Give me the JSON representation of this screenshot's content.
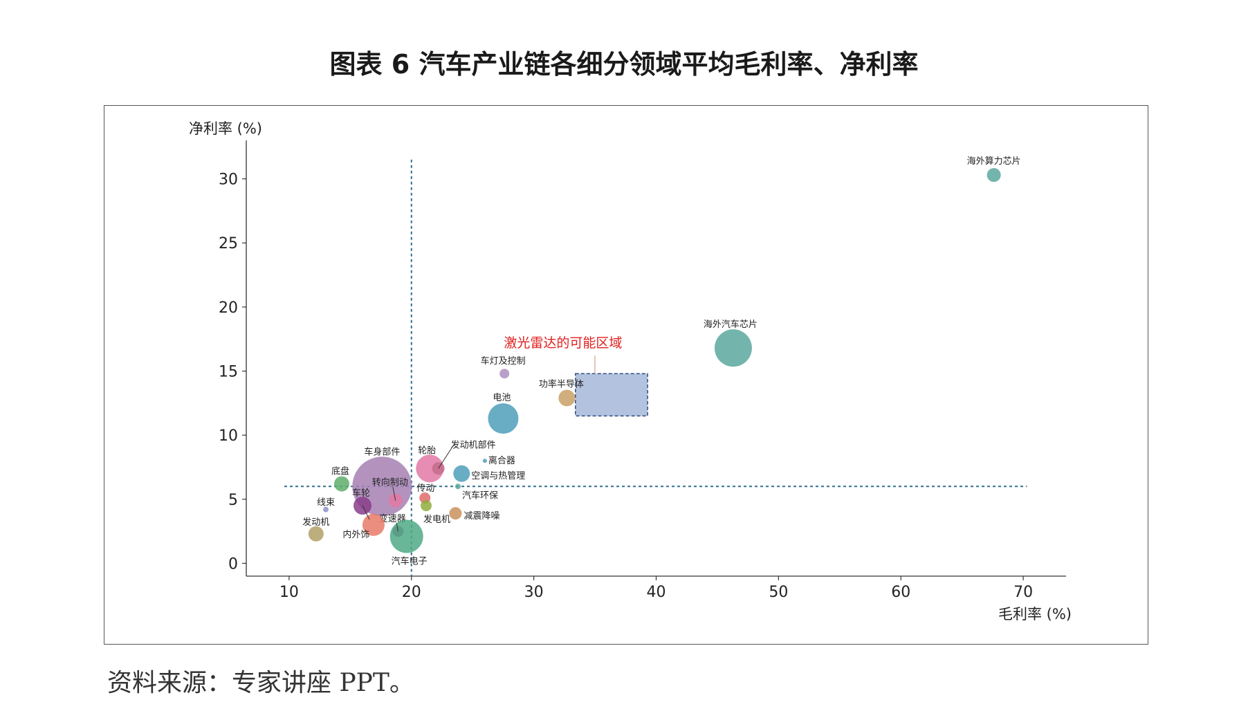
{
  "title": "图表 6  汽车产业链各细分领域平均毛利率、净利率",
  "source": "资料来源：专家讲座 PPT。",
  "chart_data": {
    "type": "scatter",
    "xlabel": "毛利率 (%)",
    "ylabel": "净利率 (%)",
    "xlim": [
      6.5,
      73.5
    ],
    "ylim": [
      -1,
      33
    ],
    "xticks": [
      10,
      20,
      30,
      40,
      50,
      60,
      70
    ],
    "yticks": [
      0,
      5,
      10,
      15,
      20,
      25,
      30
    ],
    "reference_lines": {
      "x": 20,
      "y": 6
    },
    "region": {
      "label": "激光雷达的可能区域",
      "label_color": "#e0201f",
      "x": [
        33.4,
        39.3
      ],
      "y": [
        11.5,
        14.8
      ],
      "fill": "#b3c3df"
    },
    "points": [
      {
        "name": "海外算力芯片",
        "x": 67.6,
        "y": 30.3,
        "size": 10,
        "color": "#5ba89d"
      },
      {
        "name": "海外汽车芯片",
        "x": 46.3,
        "y": 16.8,
        "size": 27,
        "color": "#5ba89d"
      },
      {
        "name": "车灯及控制",
        "x": 27.6,
        "y": 14.8,
        "size": 7,
        "color": "#ab8fc2"
      },
      {
        "name": "功率半导体",
        "x": 32.7,
        "y": 12.9,
        "size": 12,
        "color": "#c9a066"
      },
      {
        "name": "电池",
        "x": 27.5,
        "y": 11.3,
        "size": 22,
        "color": "#4f9fba"
      },
      {
        "name": "车身部件",
        "x": 17.6,
        "y": 6.0,
        "size": 43,
        "color": "#a680b3"
      },
      {
        "name": "轮胎",
        "x": 21.5,
        "y": 7.4,
        "size": 20,
        "color": "#e378a5"
      },
      {
        "name": "发动机部件",
        "x": 22.2,
        "y": 7.4,
        "size": 9,
        "color": "#c46b8a"
      },
      {
        "name": "离合器",
        "x": 26.0,
        "y": 8.0,
        "size": 3,
        "color": "#4f9fba"
      },
      {
        "name": "空调与热管理",
        "x": 24.1,
        "y": 7.0,
        "size": 12,
        "color": "#4f9fba"
      },
      {
        "name": "汽车环保",
        "x": 23.8,
        "y": 6.0,
        "size": 4,
        "color": "#5ba89d"
      },
      {
        "name": "转向制动",
        "x": 18.7,
        "y": 4.9,
        "size": 10,
        "color": "#e378a5"
      },
      {
        "name": "传动",
        "x": 21.1,
        "y": 5.1,
        "size": 8,
        "color": "#e06b6b"
      },
      {
        "name": "发电机",
        "x": 21.2,
        "y": 4.5,
        "size": 8,
        "color": "#8fae3c"
      },
      {
        "name": "减震降噪",
        "x": 23.6,
        "y": 3.9,
        "size": 9,
        "color": "#c9925e"
      },
      {
        "name": "底盘",
        "x": 14.3,
        "y": 6.2,
        "size": 11,
        "color": "#5eae6c"
      },
      {
        "name": "车轮",
        "x": 16.0,
        "y": 4.5,
        "size": 13,
        "color": "#8a3d8a"
      },
      {
        "name": "线束",
        "x": 13.0,
        "y": 4.2,
        "size": 4,
        "color": "#8d92c9"
      },
      {
        "name": "变速器",
        "x": 18.9,
        "y": 2.5,
        "size": 8,
        "color": "#8a3d8a"
      },
      {
        "name": "内外饰",
        "x": 16.9,
        "y": 3.0,
        "size": 16,
        "color": "#e87a68"
      },
      {
        "name": "发动机",
        "x": 12.2,
        "y": 2.3,
        "size": 11,
        "color": "#b1a066"
      },
      {
        "name": "汽车电子",
        "x": 19.6,
        "y": 2.1,
        "size": 24,
        "color": "#4faa86"
      }
    ]
  }
}
